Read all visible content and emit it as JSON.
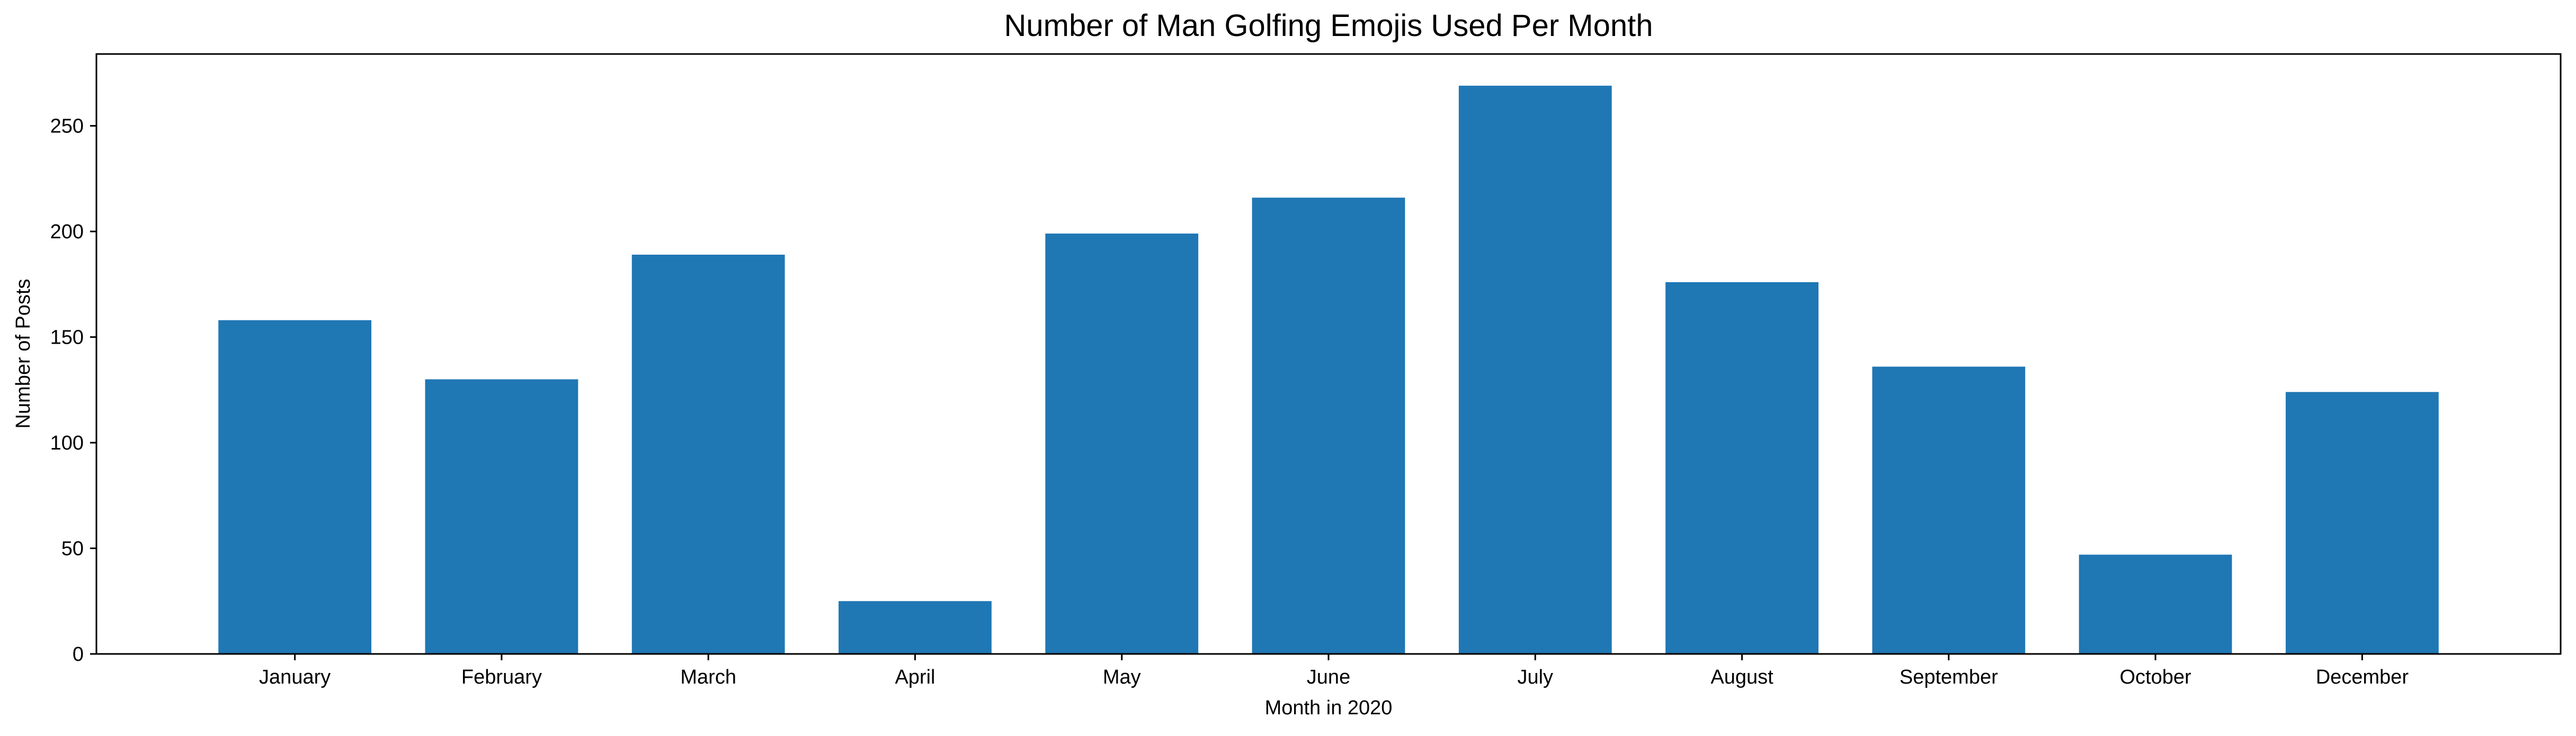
{
  "chart_data": {
    "type": "bar",
    "title": "Number of Man Golfing Emojis Used Per Month",
    "xlabel": "Month in 2020",
    "ylabel": "Number of Posts",
    "categories": [
      "January",
      "February",
      "March",
      "April",
      "May",
      "June",
      "July",
      "August",
      "September",
      "October",
      "December"
    ],
    "values": [
      158,
      130,
      189,
      25,
      199,
      216,
      269,
      176,
      136,
      47,
      124
    ],
    "ylim": [
      0,
      284
    ],
    "yticks": [
      0,
      50,
      100,
      150,
      200,
      250
    ],
    "grid": false,
    "legend": "none",
    "bar_color": "#1f77b4"
  }
}
